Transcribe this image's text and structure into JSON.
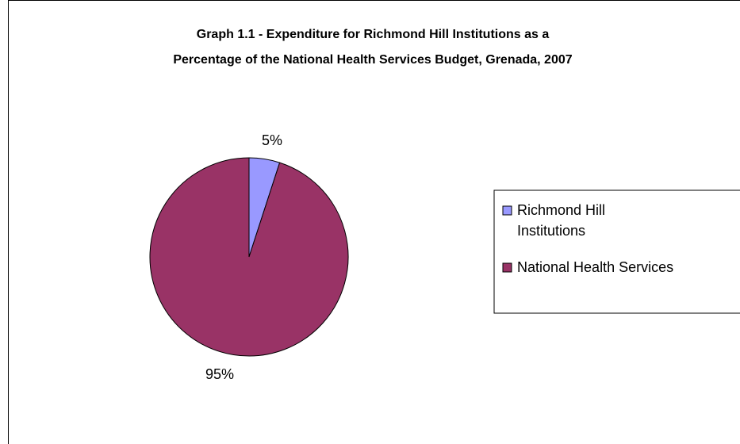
{
  "chart_data": {
    "type": "pie",
    "title_lines": [
      "Graph 1.1 - Expenditure for Richmond Hill Institutions as a",
      "Percentage of the National Health Services Budget, Grenada, 2007"
    ],
    "slices": [
      {
        "label_lines": [
          "Richmond Hill",
          "Institutions"
        ],
        "value": 5,
        "data_label": "5%",
        "color": "#9999ff"
      },
      {
        "label_lines": [
          "National Health Services"
        ],
        "value": 95,
        "data_label": "95%",
        "color": "#993366"
      }
    ],
    "legend_position": "right"
  }
}
